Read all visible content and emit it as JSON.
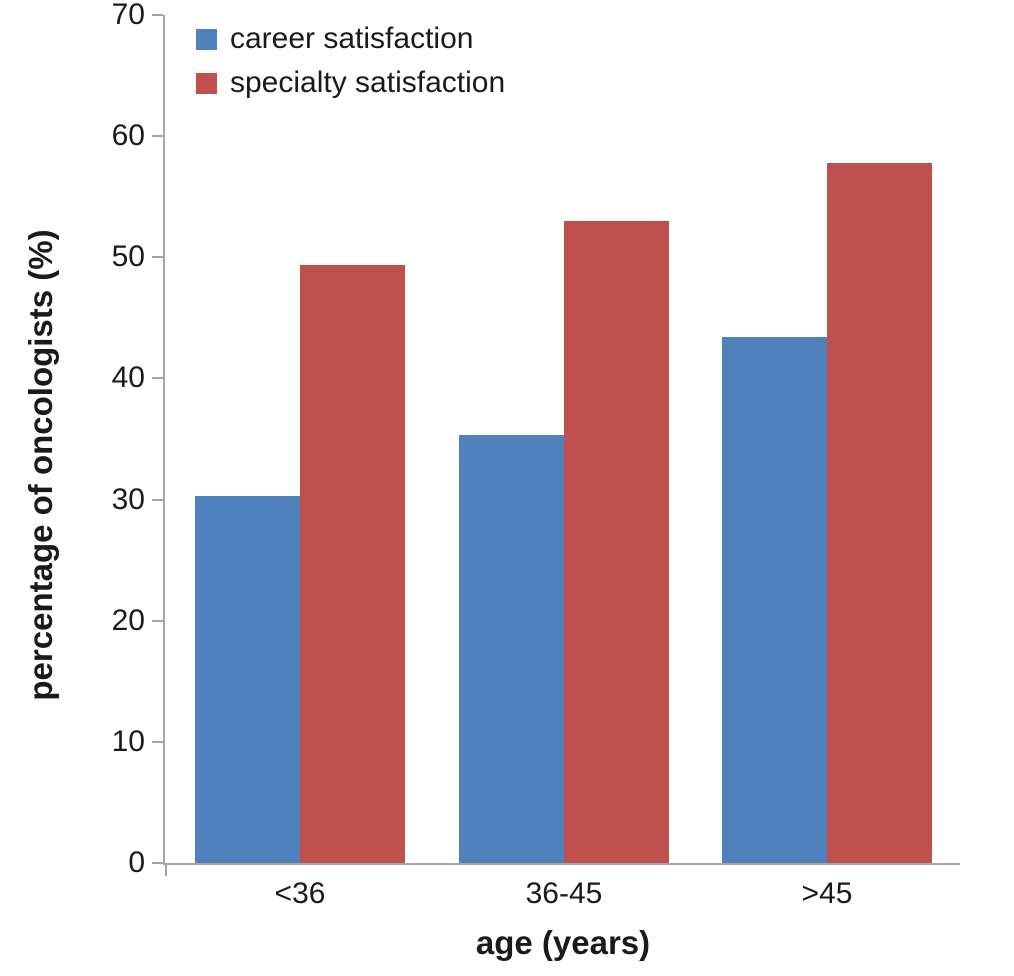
{
  "chart_data": {
    "type": "bar",
    "title": "",
    "categories": [
      "<36",
      "36-45",
      ">45"
    ],
    "series": [
      {
        "name": "career satisfaction",
        "color": "#4f81bd",
        "values": [
          30.3,
          35.3,
          43.4
        ]
      },
      {
        "name": "specialty satisfaction",
        "color": "#c0504d",
        "values": [
          49.4,
          53.0,
          57.8
        ]
      }
    ],
    "xlabel": "age (years)",
    "ylabel": "percentage of oncologists (%)",
    "ylim": [
      0,
      70
    ],
    "yticks": [
      0,
      10,
      20,
      30,
      40,
      50,
      60,
      70
    ],
    "grid": false,
    "legend_position": "top-left",
    "axis_color": "#a6a6a6",
    "text_color": "#1a1a1a"
  }
}
